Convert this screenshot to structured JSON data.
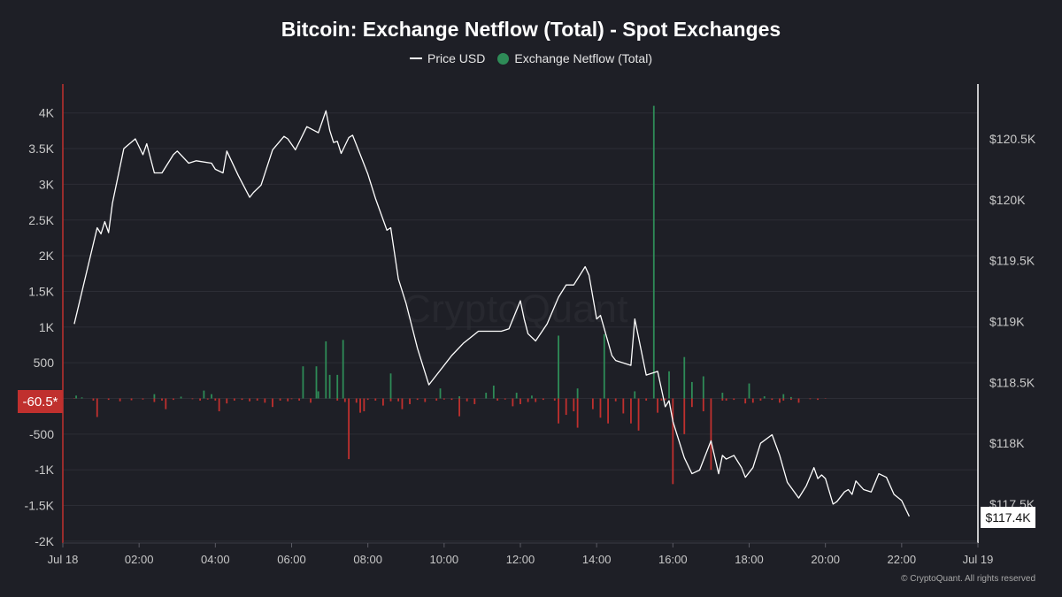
{
  "title": "Bitcoin: Exchange Netflow (Total) - Spot Exchanges",
  "legend": {
    "price_label": "Price USD",
    "netflow_label": "Exchange Netflow (Total)"
  },
  "watermark": "CryptoQuant",
  "footer": "© CryptoQuant. All rights reserved",
  "colors": {
    "background": "#1e1f26",
    "price_line": "#ffffff",
    "positive_bar": "#2e8b57",
    "negative_bar": "#c0302e",
    "left_axis_line": "#c0302e",
    "right_axis_line": "#ffffff",
    "grid": "#2c2d35",
    "tick_text": "#c8c8c8"
  },
  "current_netflow_label": "-60.5*",
  "current_price_label": "$117.4K",
  "chart_data": {
    "type": "bar+line",
    "grid": true,
    "legend_position": "top-center",
    "x_axis": {
      "unit": "hours since Jul 18 00:00",
      "range": [
        0,
        24
      ],
      "ticks": [
        {
          "value": 0,
          "label": "Jul 18"
        },
        {
          "value": 2,
          "label": "02:00"
        },
        {
          "value": 4,
          "label": "04:00"
        },
        {
          "value": 6,
          "label": "06:00"
        },
        {
          "value": 8,
          "label": "08:00"
        },
        {
          "value": 10,
          "label": "10:00"
        },
        {
          "value": 12,
          "label": "12:00"
        },
        {
          "value": 14,
          "label": "14:00"
        },
        {
          "value": 16,
          "label": "16:00"
        },
        {
          "value": 18,
          "label": "18:00"
        },
        {
          "value": 20,
          "label": "20:00"
        },
        {
          "value": 22,
          "label": "22:00"
        },
        {
          "value": 24,
          "label": "Jul 19"
        }
      ]
    },
    "y_left": {
      "series": "Exchange Netflow (Total)",
      "range": [
        -2000,
        4000
      ],
      "ticks": [
        {
          "value": 4000,
          "label": "4K"
        },
        {
          "value": 3500,
          "label": "3.5K"
        },
        {
          "value": 3000,
          "label": "3K"
        },
        {
          "value": 2500,
          "label": "2.5K"
        },
        {
          "value": 2000,
          "label": "2K"
        },
        {
          "value": 1500,
          "label": "1.5K"
        },
        {
          "value": 1000,
          "label": "1K"
        },
        {
          "value": 500,
          "label": "500"
        },
        {
          "value": -500,
          "label": "-500"
        },
        {
          "value": -1000,
          "label": "-1K"
        },
        {
          "value": -1500,
          "label": "-1.5K"
        },
        {
          "value": -2000,
          "label": "-2K"
        }
      ]
    },
    "y_right": {
      "series": "Price USD",
      "range": [
        117100,
        120900
      ],
      "ticks": [
        {
          "value": 120500,
          "label": "$120.5K"
        },
        {
          "value": 120000,
          "label": "$120K"
        },
        {
          "value": 119500,
          "label": "$119.5K"
        },
        {
          "value": 119000,
          "label": "$119K"
        },
        {
          "value": 118500,
          "label": "$118.5K"
        },
        {
          "value": 118000,
          "label": "$118K"
        },
        {
          "value": 117500,
          "label": "$117.5K"
        }
      ]
    },
    "netflow": [
      [
        0.3,
        -5
      ],
      [
        0.5,
        15
      ],
      [
        0.8,
        -30
      ],
      [
        0.9,
        -260
      ],
      [
        1.2,
        -20
      ],
      [
        1.5,
        -40
      ],
      [
        1.8,
        -25
      ],
      [
        2.1,
        -15
      ],
      [
        2.4,
        -50
      ],
      [
        2.6,
        -30
      ],
      [
        2.7,
        -150
      ],
      [
        2.9,
        -20
      ],
      [
        3.1,
        25
      ],
      [
        3.4,
        -10
      ],
      [
        3.6,
        -30
      ],
      [
        3.8,
        -15
      ],
      [
        4.0,
        -30
      ],
      [
        4.1,
        -180
      ],
      [
        4.3,
        -70
      ],
      [
        4.5,
        -30
      ],
      [
        4.7,
        -20
      ],
      [
        4.9,
        -40
      ],
      [
        5.1,
        -30
      ],
      [
        5.3,
        -60
      ],
      [
        5.5,
        -120
      ],
      [
        5.7,
        -30
      ],
      [
        5.9,
        -40
      ],
      [
        6.0,
        -10
      ],
      [
        6.2,
        -30
      ],
      [
        6.3,
        450
      ],
      [
        6.5,
        -60
      ],
      [
        6.7,
        100
      ],
      [
        6.9,
        800
      ],
      [
        7.0,
        330
      ],
      [
        7.2,
        -30
      ],
      [
        7.4,
        -50
      ],
      [
        7.5,
        -850
      ],
      [
        7.7,
        -60
      ],
      [
        7.8,
        -200
      ],
      [
        7.9,
        -180
      ],
      [
        8.0,
        -20
      ],
      [
        8.2,
        -30
      ],
      [
        8.4,
        -100
      ],
      [
        8.6,
        -40
      ],
      [
        8.8,
        -40
      ],
      [
        8.9,
        -150
      ],
      [
        9.1,
        -80
      ],
      [
        9.3,
        -20
      ],
      [
        9.5,
        -50
      ],
      [
        9.8,
        -30
      ],
      [
        10.0,
        -15
      ],
      [
        10.2,
        -20
      ],
      [
        10.4,
        -250
      ],
      [
        10.6,
        -40
      ],
      [
        10.8,
        -80
      ],
      [
        11.1,
        80
      ],
      [
        11.4,
        -30
      ],
      [
        11.6,
        -15
      ],
      [
        11.8,
        -110
      ],
      [
        12.0,
        -80
      ],
      [
        12.2,
        -50
      ],
      [
        12.4,
        -50
      ],
      [
        12.6,
        -20
      ],
      [
        12.9,
        -30
      ],
      [
        13.0,
        -350
      ],
      [
        13.2,
        -230
      ],
      [
        13.4,
        -180
      ],
      [
        13.5,
        -410
      ],
      [
        13.9,
        -150
      ],
      [
        14.1,
        -270
      ],
      [
        14.3,
        -350
      ],
      [
        14.5,
        -40
      ],
      [
        14.7,
        -210
      ],
      [
        14.9,
        -350
      ],
      [
        15.1,
        -450
      ],
      [
        15.3,
        -30
      ],
      [
        15.6,
        -200
      ],
      [
        15.7,
        -30
      ],
      [
        15.8,
        -25
      ],
      [
        16.0,
        -1200
      ],
      [
        16.3,
        -500
      ],
      [
        16.5,
        -120
      ],
      [
        16.8,
        -180
      ],
      [
        17.0,
        -1000
      ],
      [
        17.3,
        -30
      ],
      [
        17.4,
        -30
      ],
      [
        17.6,
        -20
      ],
      [
        17.9,
        -70
      ],
      [
        18.1,
        -60
      ],
      [
        18.3,
        -30
      ],
      [
        18.6,
        -20
      ],
      [
        18.8,
        -60
      ],
      [
        18.9,
        -30
      ],
      [
        19.1,
        -20
      ],
      [
        19.3,
        -60
      ],
      [
        19.6,
        -10
      ],
      [
        19.8,
        -20
      ],
      [
        20.0,
        -5
      ]
    ],
    "netflow_positive": [
      [
        0.35,
        40
      ],
      [
        2.4,
        60
      ],
      [
        3.7,
        110
      ],
      [
        3.9,
        60
      ],
      [
        6.65,
        450
      ],
      [
        7.2,
        330
      ],
      [
        7.35,
        820
      ],
      [
        8.6,
        350
      ],
      [
        9.9,
        140
      ],
      [
        10.4,
        30
      ],
      [
        11.3,
        180
      ],
      [
        11.9,
        80
      ],
      [
        12.3,
        40
      ],
      [
        13.0,
        880
      ],
      [
        13.5,
        140
      ],
      [
        14.2,
        900
      ],
      [
        15.0,
        100
      ],
      [
        15.5,
        4100
      ],
      [
        15.9,
        380
      ],
      [
        16.3,
        580
      ],
      [
        16.5,
        230
      ],
      [
        16.8,
        310
      ],
      [
        17.3,
        80
      ],
      [
        18.0,
        210
      ],
      [
        18.4,
        30
      ],
      [
        18.9,
        60
      ],
      [
        19.1,
        20
      ]
    ],
    "price": [
      [
        0.3,
        118.98
      ],
      [
        0.9,
        119.77
      ],
      [
        1.0,
        119.72
      ],
      [
        1.1,
        119.82
      ],
      [
        1.2,
        119.73
      ],
      [
        1.3,
        119.97
      ],
      [
        1.6,
        120.42
      ],
      [
        1.9,
        120.5
      ],
      [
        2.1,
        120.37
      ],
      [
        2.2,
        120.46
      ],
      [
        2.4,
        120.22
      ],
      [
        2.6,
        120.22
      ],
      [
        2.9,
        120.37
      ],
      [
        3.0,
        120.4
      ],
      [
        3.3,
        120.3
      ],
      [
        3.5,
        120.32
      ],
      [
        3.9,
        120.3
      ],
      [
        4.0,
        120.25
      ],
      [
        4.2,
        120.22
      ],
      [
        4.3,
        120.4
      ],
      [
        4.6,
        120.2
      ],
      [
        4.9,
        120.02
      ],
      [
        5.0,
        120.06
      ],
      [
        5.2,
        120.12
      ],
      [
        5.5,
        120.41
      ],
      [
        5.8,
        120.52
      ],
      [
        5.9,
        120.5
      ],
      [
        6.1,
        120.41
      ],
      [
        6.4,
        120.6
      ],
      [
        6.7,
        120.55
      ],
      [
        6.9,
        120.73
      ],
      [
        7.0,
        120.57
      ],
      [
        7.1,
        120.47
      ],
      [
        7.2,
        120.48
      ],
      [
        7.3,
        120.38
      ],
      [
        7.5,
        120.51
      ],
      [
        7.6,
        120.53
      ],
      [
        7.8,
        120.37
      ],
      [
        8.0,
        120.21
      ],
      [
        8.2,
        120.01
      ],
      [
        8.5,
        119.75
      ],
      [
        8.6,
        119.77
      ],
      [
        8.8,
        119.35
      ],
      [
        9.0,
        119.15
      ],
      [
        9.3,
        118.78
      ],
      [
        9.6,
        118.48
      ],
      [
        10.2,
        118.72
      ],
      [
        10.5,
        118.82
      ],
      [
        10.9,
        118.92
      ],
      [
        11.5,
        118.92
      ],
      [
        11.7,
        118.94
      ],
      [
        12.0,
        119.17
      ],
      [
        12.1,
        119.02
      ],
      [
        12.2,
        118.9
      ],
      [
        12.4,
        118.84
      ],
      [
        12.7,
        118.98
      ],
      [
        13.0,
        119.2
      ],
      [
        13.2,
        119.3
      ],
      [
        13.4,
        119.3
      ],
      [
        13.7,
        119.45
      ],
      [
        13.8,
        119.38
      ],
      [
        14.0,
        119.02
      ],
      [
        14.1,
        119.05
      ],
      [
        14.4,
        118.72
      ],
      [
        14.5,
        118.68
      ],
      [
        14.9,
        118.64
      ],
      [
        15.0,
        119.02
      ],
      [
        15.3,
        118.56
      ],
      [
        15.6,
        118.59
      ],
      [
        15.8,
        118.3
      ],
      [
        15.9,
        118.35
      ],
      [
        16.0,
        118.18
      ],
      [
        16.1,
        118.08
      ],
      [
        16.3,
        117.88
      ],
      [
        16.5,
        117.75
      ],
      [
        16.7,
        117.78
      ],
      [
        17.0,
        118.02
      ],
      [
        17.2,
        117.75
      ],
      [
        17.3,
        117.9
      ],
      [
        17.4,
        117.87
      ],
      [
        17.6,
        117.9
      ],
      [
        17.8,
        117.8
      ],
      [
        17.9,
        117.72
      ],
      [
        18.1,
        117.8
      ],
      [
        18.3,
        118.0
      ],
      [
        18.6,
        118.07
      ],
      [
        18.8,
        117.9
      ],
      [
        19.0,
        117.68
      ],
      [
        19.3,
        117.55
      ],
      [
        19.5,
        117.65
      ],
      [
        19.7,
        117.8
      ],
      [
        19.8,
        117.71
      ],
      [
        19.9,
        117.74
      ],
      [
        20.0,
        117.71
      ],
      [
        20.2,
        117.5
      ],
      [
        20.3,
        117.52
      ],
      [
        20.5,
        117.6
      ],
      [
        20.6,
        117.62
      ],
      [
        20.7,
        117.58
      ],
      [
        20.8,
        117.69
      ],
      [
        21.0,
        117.62
      ],
      [
        21.2,
        117.6
      ],
      [
        21.4,
        117.75
      ],
      [
        21.6,
        117.72
      ],
      [
        21.8,
        117.58
      ],
      [
        22.0,
        117.53
      ],
      [
        22.2,
        117.4
      ]
    ]
  }
}
